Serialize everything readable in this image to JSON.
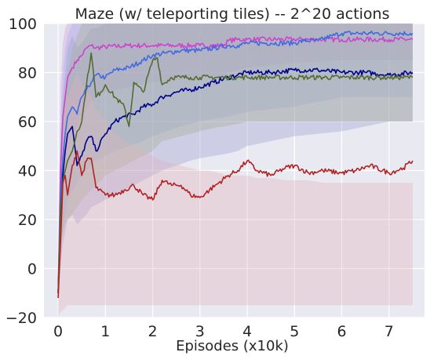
{
  "chart_data": {
    "type": "line",
    "title": "Maze (w/ teleporting tiles) -- 2^20 actions",
    "xlabel": "Episodes (x10k)",
    "ylabel": "",
    "xlim": [
      -0.3,
      7.75
    ],
    "ylim": [
      -20,
      100
    ],
    "xticks": [
      0,
      1,
      2,
      3,
      4,
      5,
      6,
      7
    ],
    "yticks": [
      -20,
      0,
      20,
      40,
      60,
      80,
      100
    ],
    "grid": true,
    "legend": "none",
    "background": "#e9e9f1",
    "grid_color": "#ffffff",
    "series": [
      {
        "color": "#cc44cc",
        "band_color": "#d29cd6",
        "x": [
          0.0,
          0.05,
          0.1,
          0.15,
          0.2,
          0.3,
          0.4,
          0.5,
          0.6,
          0.7,
          0.8,
          1.0,
          1.5,
          2.0,
          2.5,
          3.0,
          3.5,
          3.6,
          3.8,
          4.0,
          5.0,
          6.0,
          7.0,
          7.5
        ],
        "y": [
          -10,
          40,
          62,
          70,
          78,
          82,
          85,
          87,
          90,
          91,
          90,
          90.5,
          91,
          91,
          91,
          91,
          91,
          93,
          93.5,
          93.5,
          93.5,
          93.5,
          93.5,
          93.5
        ],
        "lower": [
          -10,
          20,
          35,
          42,
          48,
          55,
          58,
          62,
          65,
          68,
          70,
          72,
          74,
          76,
          77,
          78,
          79,
          80,
          81,
          82,
          84,
          85,
          85,
          85
        ],
        "upper": [
          -10,
          75,
          92,
          98,
          100,
          100,
          100,
          100,
          100,
          100,
          100,
          100,
          100,
          100,
          100,
          100,
          100,
          100,
          100,
          100,
          100,
          100,
          100,
          100
        ]
      },
      {
        "color": "#4169e1",
        "band_color": "#9db1f0",
        "x": [
          0.0,
          0.05,
          0.1,
          0.15,
          0.2,
          0.3,
          0.4,
          0.5,
          0.6,
          0.7,
          0.8,
          1.0,
          1.2,
          1.5,
          1.8,
          2.0,
          2.3,
          2.6,
          3.0,
          3.3,
          3.6,
          3.8,
          4.0,
          4.5,
          5.0,
          5.2,
          5.5,
          5.8,
          6.0,
          6.5,
          7.0,
          7.5
        ],
        "y": [
          -10,
          30,
          45,
          55,
          62,
          66,
          63,
          70,
          73,
          76,
          79,
          78,
          81,
          82,
          85,
          87,
          88,
          89,
          89,
          90,
          91,
          91,
          92,
          92,
          92,
          93,
          93,
          95,
          96,
          96,
          96,
          96
        ],
        "lower": [
          -10,
          5,
          15,
          22,
          28,
          32,
          35,
          38,
          40,
          42,
          44,
          46,
          48,
          50,
          52,
          54,
          56,
          58,
          60,
          61,
          62,
          63,
          64,
          65,
          66,
          67,
          68,
          69,
          70,
          70,
          70,
          70
        ],
        "upper": [
          -10,
          60,
          80,
          90,
          95,
          100,
          100,
          100,
          100,
          100,
          100,
          100,
          100,
          100,
          100,
          100,
          100,
          100,
          100,
          100,
          100,
          100,
          100,
          100,
          100,
          100,
          100,
          100,
          100,
          100,
          100,
          100
        ]
      },
      {
        "color": "#00008b",
        "band_color": "#9a9ad0",
        "x": [
          0.0,
          0.05,
          0.1,
          0.15,
          0.2,
          0.3,
          0.4,
          0.5,
          0.6,
          0.7,
          0.8,
          1.0,
          1.2,
          1.4,
          1.6,
          1.8,
          2.0,
          2.2,
          2.5,
          2.8,
          3.0,
          3.3,
          3.6,
          3.8,
          4.0,
          4.5,
          5.0,
          5.5,
          6.0,
          6.5,
          7.0,
          7.5
        ],
        "y": [
          -10,
          20,
          38,
          48,
          55,
          58,
          42,
          46,
          52,
          54,
          48,
          55,
          60,
          62,
          63,
          66,
          67,
          70,
          72,
          73,
          74,
          76,
          78,
          79,
          80,
          80,
          81,
          81,
          80,
          80,
          79,
          80
        ],
        "lower": [
          -10,
          0,
          10,
          15,
          20,
          22,
          18,
          20,
          22,
          25,
          26,
          28,
          30,
          32,
          34,
          36,
          38,
          40,
          42,
          44,
          45,
          46,
          47,
          48,
          50,
          52,
          54,
          55,
          56,
          58,
          60,
          60
        ],
        "upper": [
          -10,
          50,
          70,
          80,
          90,
          95,
          90,
          92,
          95,
          98,
          98,
          100,
          100,
          100,
          100,
          100,
          100,
          100,
          100,
          100,
          100,
          100,
          100,
          100,
          100,
          100,
          100,
          100,
          100,
          100,
          100,
          100
        ]
      },
      {
        "color": "#556b2f",
        "band_color": "#a4b08a",
        "x": [
          0.0,
          0.05,
          0.1,
          0.15,
          0.2,
          0.3,
          0.4,
          0.5,
          0.6,
          0.7,
          0.8,
          0.9,
          1.0,
          1.2,
          1.4,
          1.5,
          1.6,
          1.8,
          2.0,
          2.1,
          2.2,
          2.4,
          2.6,
          2.8,
          3.0,
          3.2,
          3.5,
          3.8,
          4.0,
          4.5,
          5.0,
          5.5,
          6.0,
          6.5,
          7.0,
          7.5
        ],
        "y": [
          -10,
          25,
          36,
          40,
          44,
          48,
          56,
          60,
          75,
          88,
          70,
          72,
          75,
          70,
          66,
          58,
          76,
          72,
          85,
          86,
          75,
          78,
          78,
          78,
          78,
          78,
          78,
          78,
          78,
          78,
          78,
          78,
          78,
          78,
          78,
          78
        ],
        "lower": [
          -10,
          10,
          15,
          18,
          20,
          22,
          25,
          28,
          30,
          32,
          34,
          36,
          38,
          40,
          42,
          43,
          44,
          46,
          48,
          50,
          52,
          53,
          54,
          55,
          56,
          57,
          58,
          59,
          60,
          60,
          60,
          60,
          60,
          60,
          60,
          60
        ],
        "upper": [
          -10,
          45,
          60,
          70,
          80,
          90,
          95,
          100,
          100,
          100,
          100,
          100,
          100,
          100,
          100,
          100,
          100,
          100,
          100,
          100,
          100,
          100,
          100,
          100,
          100,
          100,
          100,
          100,
          100,
          100,
          100,
          100,
          100,
          100,
          100,
          100
        ]
      },
      {
        "color": "#b22222",
        "band_color": "#e3b3b8",
        "x": [
          0.0,
          0.05,
          0.1,
          0.15,
          0.2,
          0.3,
          0.4,
          0.5,
          0.6,
          0.7,
          0.8,
          1.0,
          1.2,
          1.4,
          1.6,
          1.8,
          2.0,
          2.2,
          2.4,
          2.6,
          2.8,
          3.0,
          3.2,
          3.4,
          3.6,
          3.8,
          4.0,
          4.2,
          4.5,
          4.8,
          5.0,
          5.3,
          5.6,
          6.0,
          6.3,
          6.6,
          7.0,
          7.3,
          7.5
        ],
        "y": [
          -12,
          10,
          35,
          38,
          30,
          42,
          48,
          38,
          44,
          45,
          33,
          30,
          30,
          32,
          34,
          30,
          28,
          36,
          34,
          34,
          30,
          29,
          32,
          35,
          38,
          40,
          44,
          40,
          38,
          41,
          42,
          39,
          40,
          39,
          40,
          42,
          39,
          41,
          44
        ],
        "lower": [
          -20,
          -18,
          -17,
          -16,
          -15,
          -15,
          -15,
          -15,
          -15,
          -15,
          -15,
          -15,
          -15,
          -15,
          -15,
          -15,
          -15,
          -15,
          -15,
          -15,
          -15,
          -15,
          -15,
          -15,
          -15,
          -15,
          -15,
          -15,
          -15,
          -15,
          -15,
          -15,
          -15,
          -15,
          -15,
          -15,
          -15,
          -15,
          -15
        ],
        "upper": [
          -5,
          40,
          65,
          75,
          70,
          75,
          80,
          75,
          72,
          70,
          65,
          60,
          55,
          52,
          50,
          48,
          46,
          44,
          43,
          42,
          41,
          40,
          40,
          39,
          38,
          38,
          38,
          37,
          37,
          36,
          36,
          36,
          35,
          35,
          35,
          35,
          35,
          35,
          35
        ]
      }
    ]
  }
}
